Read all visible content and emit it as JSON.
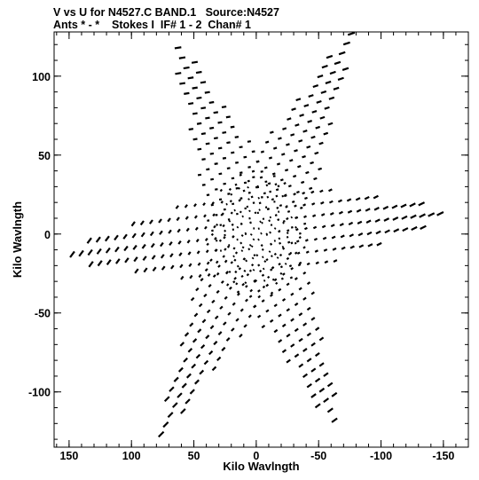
{
  "title_line1": "V vs U for N4527.C BAND.1   Source:N4527",
  "title_line2": "Ants * - *    Stokes I  IF# 1 - 2  Chan# 1",
  "chart_data": {
    "type": "scatter",
    "title": "V vs U for N4527.C BAND.1   Source:N4527",
    "subtitle": "Ants * - *    Stokes I  IF# 1 - 2  Chan# 1",
    "xlabel": "Kilo Wavlngth",
    "ylabel": "Kilo Wavlngth",
    "xlim": [
      162,
      -170
    ],
    "ylim": [
      -135,
      128
    ],
    "x_reversed": true,
    "grid": false,
    "xticks": [
      150,
      100,
      50,
      0,
      -50,
      -100,
      -150
    ],
    "yticks": [
      100,
      50,
      0,
      -50,
      -100
    ],
    "xtick_labels": [
      "150",
      "100",
      "50",
      "0",
      "-50",
      "-100",
      "-150"
    ],
    "ytick_labels": [
      "100",
      "50",
      "0",
      "-50",
      "-100"
    ],
    "arms": [
      {
        "angle_deg": 121,
        "radius": 150
      },
      {
        "angle_deg": 62,
        "radius": 138
      },
      {
        "angle_deg": 175,
        "radius": 155
      },
      {
        "angle_deg": 301,
        "radius": 150
      },
      {
        "angle_deg": 242,
        "radius": 138
      },
      {
        "angle_deg": 355,
        "radius": 155
      }
    ],
    "color": "#000000"
  }
}
